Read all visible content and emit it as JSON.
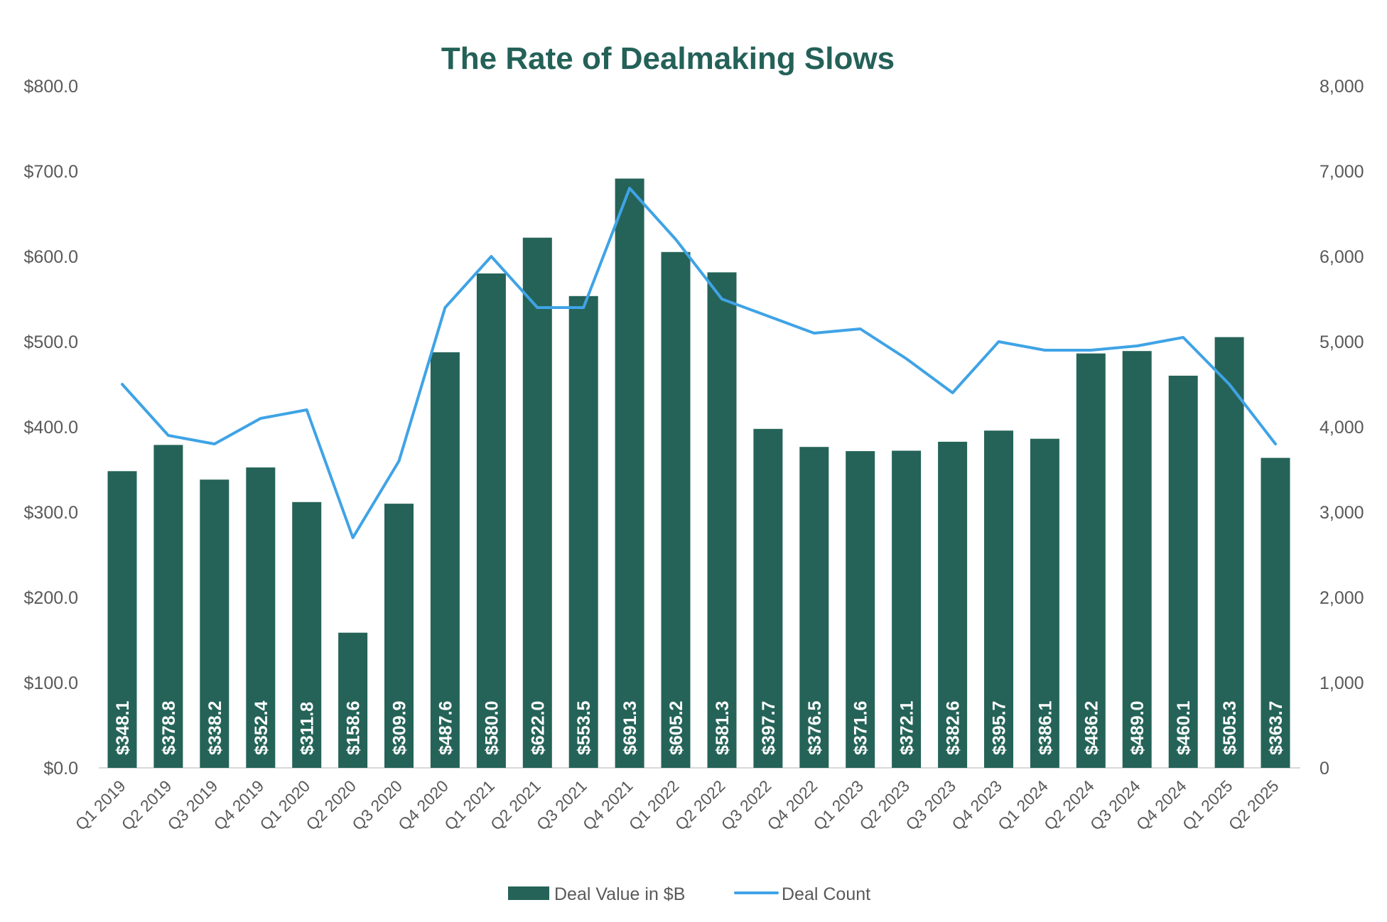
{
  "chart_data": {
    "type": "bar",
    "title": "The Rate of Dealmaking Slows",
    "xlabel": "",
    "ylabel": "",
    "y2label": "",
    "grid": false,
    "legend_position": "bottom",
    "categories": [
      "Q1 2019",
      "Q2 2019",
      "Q3 2019",
      "Q4 2019",
      "Q1 2020",
      "Q2 2020",
      "Q3 2020",
      "Q4 2020",
      "Q1 2021",
      "Q2 2021",
      "Q3 2021",
      "Q4 2021",
      "Q1 2022",
      "Q2 2022",
      "Q3 2022",
      "Q4 2022",
      "Q1 2023",
      "Q2 2023",
      "Q3 2023",
      "Q4 2023",
      "Q1 2024",
      "Q2 2024",
      "Q3 2024",
      "Q4 2024",
      "Q1 2025",
      "Q2 2025"
    ],
    "ylim": [
      0,
      800
    ],
    "y2lim": [
      0,
      8000
    ],
    "yticks": [
      "$0.0",
      "$100.0",
      "$200.0",
      "$300.0",
      "$400.0",
      "$500.0",
      "$600.0",
      "$700.0",
      "$800.0"
    ],
    "y2ticks": [
      "0",
      "1,000",
      "2,000",
      "3,000",
      "4,000",
      "5,000",
      "6,000",
      "7,000",
      "8,000"
    ],
    "series": [
      {
        "name": "Deal Value in $B",
        "type": "bar",
        "axis": "left",
        "color": "#256358",
        "values": [
          348.1,
          378.8,
          338.2,
          352.4,
          311.8,
          158.6,
          309.9,
          487.6,
          580.0,
          622.0,
          553.5,
          691.3,
          605.2,
          581.3,
          397.7,
          376.5,
          371.6,
          372.1,
          382.6,
          395.7,
          386.1,
          486.2,
          489.0,
          460.1,
          505.3,
          363.7
        ],
        "labels": [
          "$348.1",
          "$378.8",
          "$338.2",
          "$352.4",
          "$311.8",
          "$158.6",
          "$309.9",
          "$487.6",
          "$580.0",
          "$622.0",
          "$553.5",
          "$691.3",
          "$605.2",
          "$581.3",
          "$397.7",
          "$376.5",
          "$371.6",
          "$372.1",
          "$382.6",
          "$395.7",
          "$386.1",
          "$486.2",
          "$489.0",
          "$460.1",
          "$505.3",
          "$363.7"
        ]
      },
      {
        "name": "Deal Count",
        "type": "line",
        "axis": "right",
        "color": "#3fa3e6",
        "values": [
          4500,
          3900,
          3800,
          4100,
          4200,
          2700,
          3600,
          5400,
          6000,
          5400,
          5400,
          6800,
          6200,
          5500,
          5300,
          5100,
          5150,
          4800,
          4400,
          5000,
          4900,
          4900,
          4950,
          5050,
          4500,
          3800
        ]
      }
    ]
  }
}
